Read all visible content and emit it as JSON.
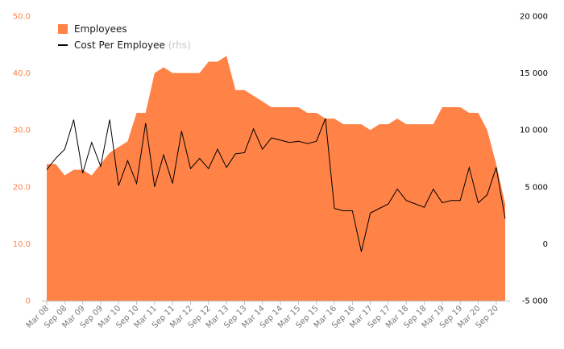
{
  "chart_data": {
    "type": "area",
    "x": [
      "Mar 08",
      "Jun 08",
      "Sep 08",
      "Dec 08",
      "Mar 09",
      "Jun 09",
      "Sep 09",
      "Dec 09",
      "Mar 10",
      "Jun 10",
      "Sep 10",
      "Dec 10",
      "Mar 11",
      "Jun 11",
      "Sep 11",
      "Dec 11",
      "Mar 12",
      "Jun 12",
      "Sep 12",
      "Dec 12",
      "Mar 13",
      "Jun 13",
      "Sep 13",
      "Dec 13",
      "Mar 14",
      "Jun 14",
      "Sep 14",
      "Dec 14",
      "Mar 15",
      "Jun 15",
      "Sep 15",
      "Dec 15",
      "Mar 16",
      "Jun 16",
      "Sep 16",
      "Dec 16",
      "Mar 17",
      "Jun 17",
      "Sep 17",
      "Dec 17",
      "Mar 18",
      "Jun 18",
      "Sep 18",
      "Dec 18",
      "Mar 19",
      "Jun 19",
      "Sep 19",
      "Dec 19",
      "Mar 20",
      "Jun 20",
      "Sep 20",
      "Dec 20"
    ],
    "x_tick_labels": [
      "Mar 08",
      "Sep 08",
      "Mar 09",
      "Sep 09",
      "Mar 10",
      "Sep 10",
      "Mar 11",
      "Sep 11",
      "Mar 12",
      "Sep 12",
      "Mar 13",
      "Sep 13",
      "Mar 14",
      "Sep 14",
      "Mar 15",
      "Sep 15",
      "Mar 16",
      "Sep 16",
      "Mar 17",
      "Sep 17",
      "Mar 18",
      "Sep 18",
      "Mar 19",
      "Sep 19",
      "Mar 20",
      "Sep 20"
    ],
    "series": [
      {
        "name": "Employees",
        "axis": "left",
        "type": "area",
        "color": "#ff8247",
        "values": [
          24,
          24,
          22,
          23,
          23,
          22,
          24,
          26,
          27,
          28,
          33,
          33,
          40,
          41,
          40,
          40,
          40,
          40,
          42,
          42,
          43,
          37,
          37,
          36,
          35,
          34,
          34,
          34,
          34,
          33,
          33,
          32,
          32,
          31,
          31,
          31,
          30,
          31,
          31,
          32,
          31,
          31,
          31,
          31,
          34,
          34,
          34,
          33,
          33,
          30,
          24,
          17
        ]
      },
      {
        "name": "Cost Per Employee",
        "axis": "right",
        "type": "line",
        "color": "#000000",
        "values": [
          6500,
          7500,
          8300,
          10900,
          6200,
          8900,
          6800,
          10900,
          5100,
          7300,
          5300,
          10600,
          5000,
          7800,
          5300,
          9900,
          6600,
          7500,
          6600,
          8300,
          6700,
          7900,
          8000,
          10100,
          8300,
          9300,
          9100,
          8900,
          9000,
          8800,
          9000,
          11000,
          3100,
          2900,
          2900,
          -700,
          2700,
          3100,
          3500,
          4800,
          3800,
          3500,
          3200,
          4800,
          3600,
          3800,
          3800,
          6700,
          3600,
          4300,
          6700,
          2200
        ]
      }
    ],
    "y_left": {
      "min": 0,
      "max": 50,
      "ticks": [
        "0",
        "10.0",
        "20.0",
        "30.0",
        "40.0",
        "50.0"
      ],
      "color": "#ff8247"
    },
    "y_right": {
      "min": -5000,
      "max": 20000,
      "ticks": [
        "-5 000",
        "0",
        "5 000",
        "10 000",
        "15 000",
        "20 000"
      ],
      "color": "#000000"
    },
    "legend": {
      "position": "top-left",
      "items": [
        {
          "label": "Employees",
          "suffix": ""
        },
        {
          "label": "Cost Per Employee",
          "suffix": "(rhs)"
        }
      ]
    },
    "grid": false
  }
}
